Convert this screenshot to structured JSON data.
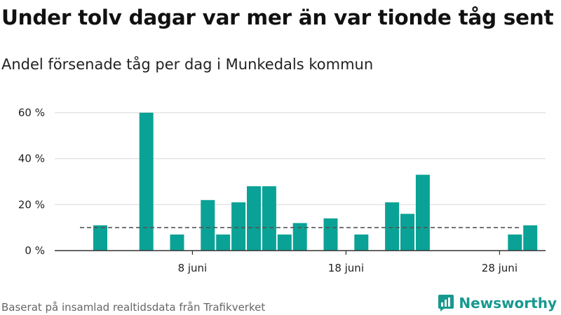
{
  "header": {
    "title": "Under tolv dagar var mer än var tionde tåg sent",
    "subtitle": "Andel försenade tåg per dag i Munkedals kommun"
  },
  "footer": {
    "source": "Baserat på insamlad realtidsdata från Trafikverket",
    "brand": "Newsworthy",
    "brand_icon": "bar-chart-logo-icon"
  },
  "colors": {
    "bar": "#0aa296",
    "reference_line": "#555555",
    "grid": "#dddddd",
    "axis": "#333333",
    "brand": "#17998f"
  },
  "chart_data": {
    "type": "bar",
    "title": "Andel försenade tåg per dag i Munkedals kommun",
    "xlabel": "",
    "ylabel": "",
    "ylim": [
      0,
      60
    ],
    "yticks": [
      0,
      20,
      40,
      60
    ],
    "ytick_labels": [
      "0 %",
      "20 %",
      "40 %",
      "60 %"
    ],
    "xticks": [
      8,
      18,
      28
    ],
    "xtick_labels": [
      "8 juni",
      "18 juni",
      "28 juni"
    ],
    "grid": true,
    "reference_line": 10,
    "series": [
      {
        "x": [
          1,
          2,
          3,
          4,
          5,
          6,
          7,
          8,
          9,
          10,
          11,
          12,
          13,
          14,
          15,
          16,
          17,
          18,
          19,
          20,
          21,
          22,
          23,
          24,
          25,
          26,
          27,
          28,
          29,
          30
        ],
        "values": [
          0,
          11,
          0,
          0,
          60,
          0,
          7,
          0,
          22,
          7,
          21,
          28,
          28,
          7,
          12,
          0,
          14,
          0,
          7,
          0,
          21,
          16,
          33,
          0,
          0,
          0,
          0,
          0,
          7,
          11
        ]
      }
    ]
  }
}
